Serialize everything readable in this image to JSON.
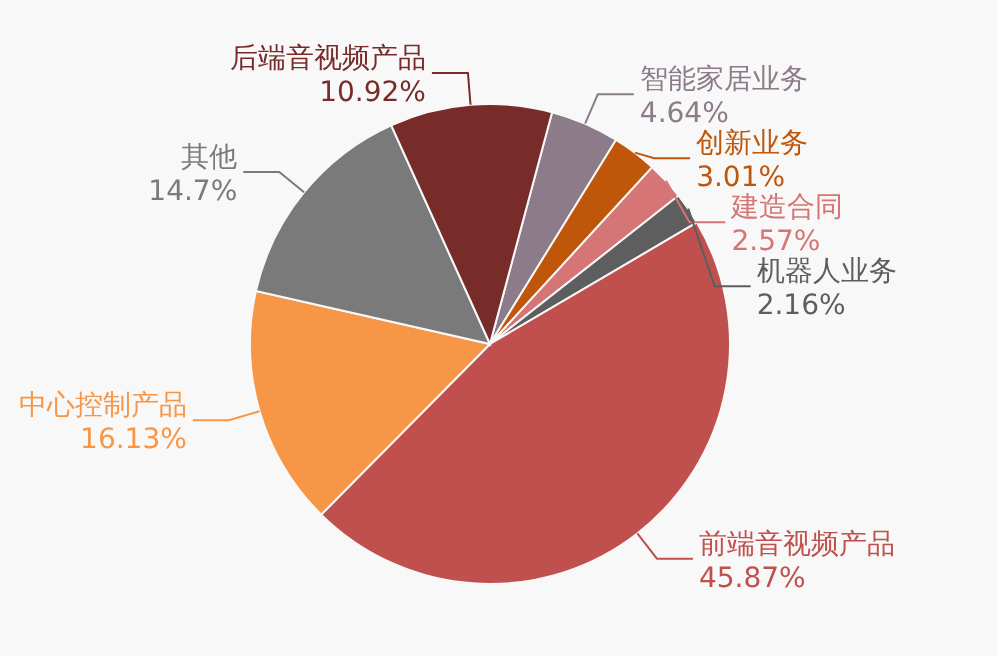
{
  "chart_data": {
    "type": "pie",
    "categories": [
      "智能家居业务",
      "创新业务",
      "建造合同",
      "机器人业务",
      "前端音视频产品",
      "中心控制产品",
      "其他",
      "后端音视频产品"
    ],
    "values": [
      4.64,
      3.01,
      2.57,
      2.16,
      45.87,
      16.13,
      14.7,
      10.92
    ],
    "colors": [
      "#8c7b88",
      "#c0560a",
      "#d57575",
      "#5e5e5e",
      "#c0504d",
      "#f79646",
      "#7a7a7a",
      "#772c2a"
    ],
    "value_labels": [
      "4.64%",
      "3.01%",
      "2.57%",
      "2.16%",
      "45.87%",
      "16.13%",
      "14.7%",
      "10.92%"
    ]
  }
}
